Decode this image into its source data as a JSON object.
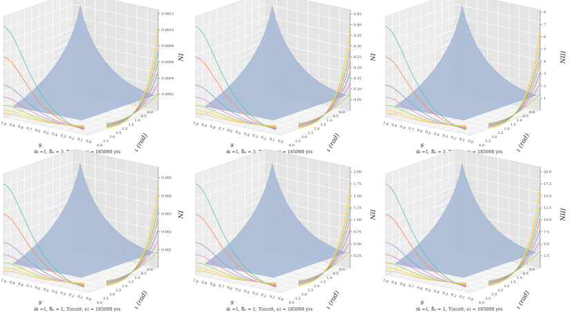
{
  "chart_data": [
    {
      "type": "surface3d",
      "zlabel": "N_I",
      "zticks": [
        "0.0002",
        "0.0004",
        "0.0006",
        "0.0008",
        "0.0010",
        "0.0012"
      ],
      "zlim": [
        0,
        0.00125
      ],
      "s_ticks": [
        "1.0",
        "0.9",
        "0.8",
        "0.7",
        "0.6",
        "0.5",
        "0.4",
        "0.3",
        "0.2",
        "0.1",
        "0.0"
      ],
      "iota_ticks": [
        "0.0",
        "0.5",
        "1.0",
        "1.5",
        "2.0",
        "2.5",
        "3.0",
        "3.5",
        "4.0"
      ],
      "xlabel": "s",
      "ylabel": "ι (rad)",
      "caption": "m̄ =1,   R̄₀ = 3,   T(σcrit, e) = 185000 yrs"
    },
    {
      "type": "surface3d",
      "zlabel": "N_I",
      "zticks": [
        "0.05",
        "0.10",
        "0.15",
        "0.20",
        "0.25",
        "0.30",
        "0.35",
        "0.40",
        "0.45"
      ],
      "zlim": [
        0,
        0.47
      ],
      "s_ticks": [
        "1.0",
        "0.9",
        "0.8",
        "0.7",
        "0.6",
        "0.5",
        "0.4",
        "0.3",
        "0.2",
        "0.1",
        "0.0"
      ],
      "iota_ticks": [
        "0.0",
        "0.5",
        "1.0",
        "1.5",
        "2.0",
        "2.5",
        "3.0",
        "3.5",
        "4.0"
      ],
      "xlabel": "s",
      "ylabel": "ι (rad)",
      "caption": "m̄ =1,   R̄₀ = 3,   T(σcrit, e) = 185000 yrs"
    },
    {
      "type": "surface3d",
      "zlabel": "N_III",
      "zticks": [
        "1",
        "2",
        "3",
        "4",
        "5",
        "6",
        "7",
        "8"
      ],
      "zlim": [
        0,
        8.2
      ],
      "s_ticks": [
        "1.0",
        "0.9",
        "0.8",
        "0.7",
        "0.6",
        "0.5",
        "0.4",
        "0.3",
        "0.2",
        "0.1",
        "0.0"
      ],
      "iota_ticks": [
        "0.0",
        "0.5",
        "1.0",
        "1.5",
        "2.0",
        "2.5",
        "3.0",
        "3.5",
        "4.0"
      ],
      "xlabel": "s",
      "ylabel": "ι (rad)",
      "caption": "m̄ =1,   R̄₀ = 3,   T(σcrit, e) = 185000 yrs"
    },
    {
      "type": "surface3d",
      "zlabel": "N_I",
      "zticks": [
        "0.001",
        "0.002",
        "0.003",
        "0.004",
        "0.005"
      ],
      "zlim": [
        0,
        0.0056
      ],
      "s_ticks": [
        "1.0",
        "0.9",
        "0.8",
        "0.7",
        "0.6",
        "0.5",
        "0.4",
        "0.3",
        "0.2",
        "0.1",
        "0.0"
      ],
      "iota_ticks": [
        "0.0",
        "0.5",
        "1.0",
        "1.5",
        "2.0",
        "2.5",
        "3.0",
        "3.5",
        "4.0"
      ],
      "xlabel": "s",
      "ylabel": "ι (rad)",
      "caption": "m̄ =1,   R̄₀ = 1,   T(σcrit, e) = 185000 yrs"
    },
    {
      "type": "surface3d",
      "zlabel": "N_II",
      "zticks": [
        "0.25",
        "0.50",
        "0.75",
        "1.00",
        "1.25",
        "1.50",
        "1.75",
        "2.00"
      ],
      "zlim": [
        0,
        2.1
      ],
      "s_ticks": [
        "1.0",
        "0.9",
        "0.8",
        "0.7",
        "0.6",
        "0.5",
        "0.4",
        "0.3",
        "0.2",
        "0.1",
        "0.0"
      ],
      "iota_ticks": [
        "0.0",
        "0.5",
        "1.0",
        "1.5",
        "2.0",
        "2.5",
        "3.0",
        "3.5",
        "4.0"
      ],
      "xlabel": "s",
      "ylabel": "ι (rad)",
      "caption": "m̄ =1,   R̄₀ = 1,   T(σcrit, e) = 185000 yrs"
    },
    {
      "type": "surface3d",
      "zlabel": "N_III",
      "zticks": [
        "2.5",
        "5.0",
        "7.5",
        "10.0",
        "12.5",
        "15.0",
        "17.5",
        "20.0"
      ],
      "zlim": [
        0,
        21
      ],
      "s_ticks": [
        "1.0",
        "0.9",
        "0.8",
        "0.7",
        "0.6",
        "0.5",
        "0.4",
        "0.3",
        "0.2",
        "0.1",
        "0.0"
      ],
      "iota_ticks": [
        "0.0",
        "0.5",
        "1.0",
        "1.5",
        "2.0",
        "2.5",
        "3.0",
        "3.5",
        "4.0"
      ],
      "xlabel": "s",
      "ylabel": "ι (rad)",
      "caption": "m̄ =1,   R̄₀ = 1,   T(σcrit, e) = 185000 yrs"
    }
  ]
}
